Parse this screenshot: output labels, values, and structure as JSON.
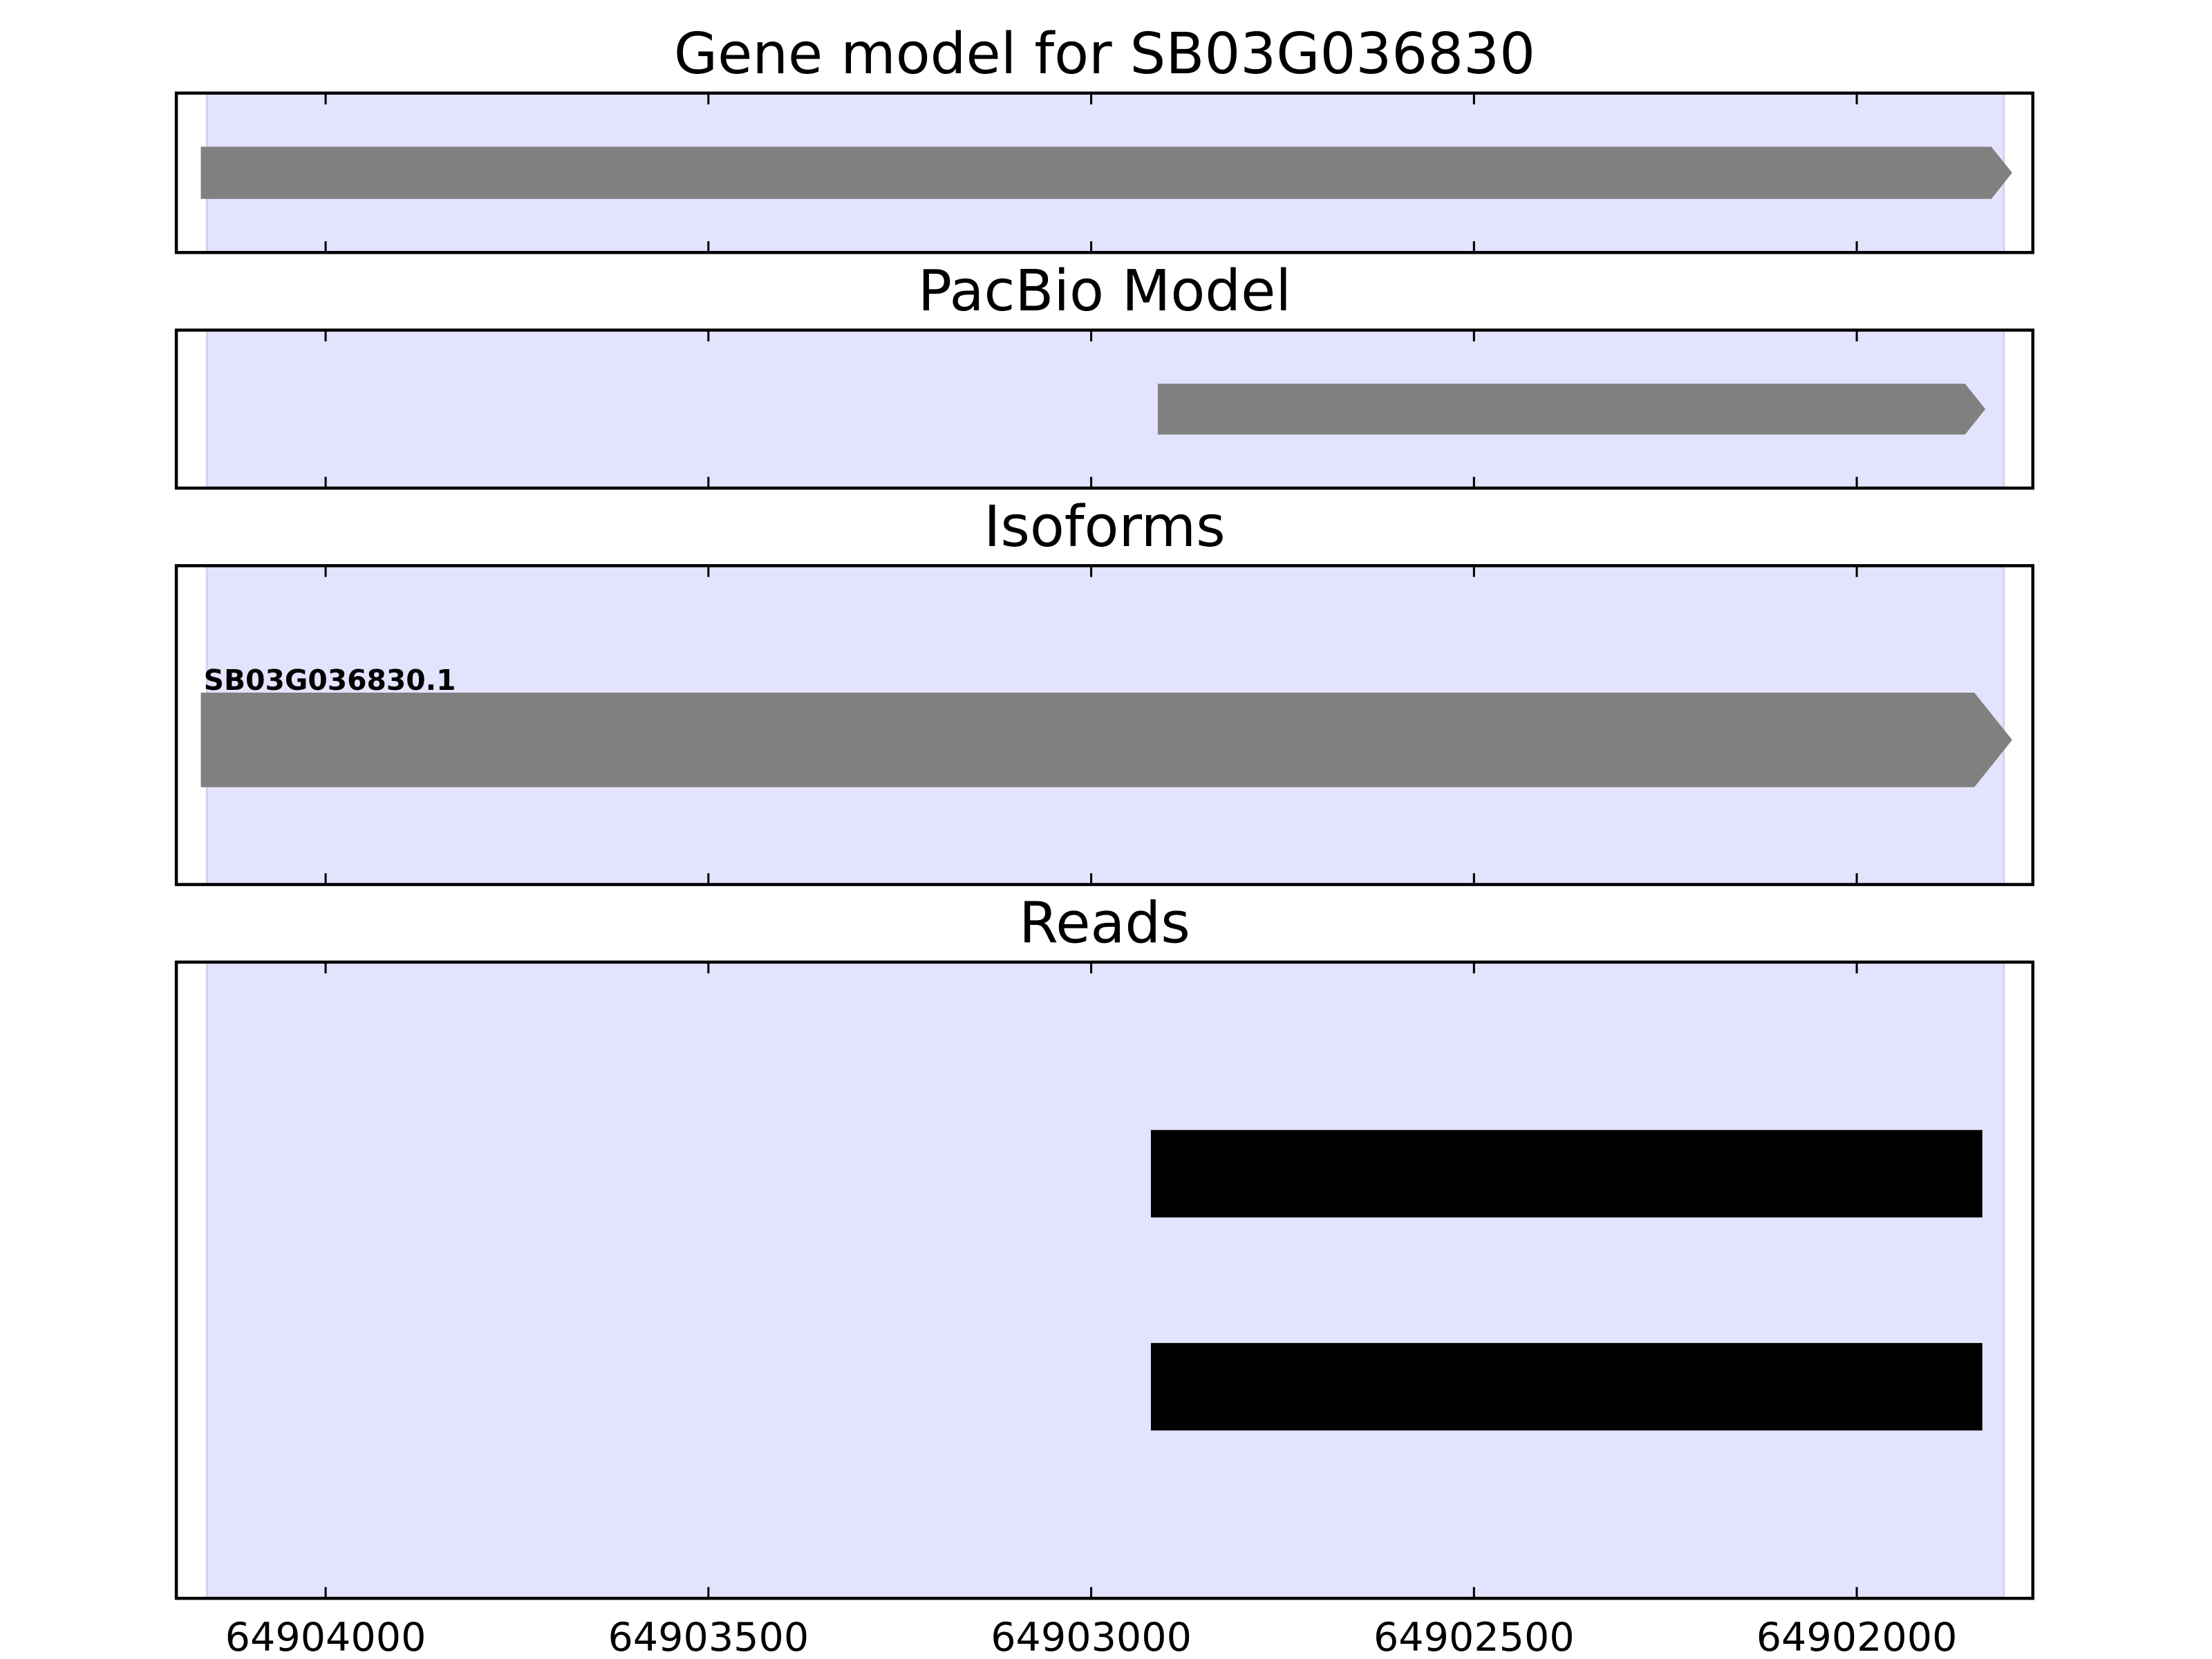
{
  "chart_data": {
    "type": "gene-track",
    "xlim": [
      64904195,
      64901770
    ],
    "x_reversed": true,
    "xticks": [
      64904000,
      64903500,
      64903000,
      64902500,
      64902000
    ],
    "xtick_labels": [
      "64904000",
      "64903500",
      "64903000",
      "64902500",
      "64902000"
    ],
    "highlight_region": {
      "start": 64904155,
      "end": 64901808,
      "color": "#e3e3fd"
    },
    "grid": false,
    "panels": [
      {
        "title": "Gene model for SB03G036830",
        "features": [
          {
            "start": 64904163,
            "end": 64901797,
            "color": "#808080",
            "arrow": true
          }
        ]
      },
      {
        "title": "PacBio Model",
        "features": [
          {
            "start": 64902913,
            "end": 64901832,
            "color": "#808080",
            "arrow": true
          }
        ]
      },
      {
        "title": "Isoforms",
        "features": [
          {
            "label": "SB03G036830.1",
            "start": 64904163,
            "end": 64901797,
            "color": "#808080",
            "arrow": true
          }
        ]
      },
      {
        "title": "Reads",
        "features": [
          {
            "start": 64902922,
            "end": 64901836,
            "color": "#000000",
            "arrow": false
          },
          {
            "start": 64902922,
            "end": 64901836,
            "color": "#000000",
            "arrow": false
          }
        ]
      }
    ]
  }
}
